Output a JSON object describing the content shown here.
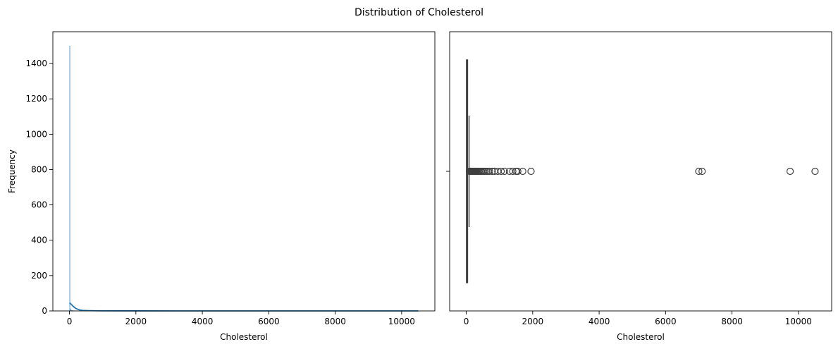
{
  "figure": {
    "title": "Distribution of Cholesterol"
  },
  "chart_data": [
    {
      "type": "histogram",
      "xlabel": "Cholesterol",
      "ylabel": "Frequency",
      "xlim": [
        -500,
        11000
      ],
      "ylim": [
        0,
        1580
      ],
      "xticks": [
        0,
        2000,
        4000,
        6000,
        8000,
        10000
      ],
      "yticks": [
        0,
        200,
        400,
        600,
        800,
        1000,
        1200,
        1400
      ],
      "grid": false,
      "bin_width": 21,
      "bins": [
        {
          "x": 0,
          "count": 1500
        },
        {
          "x": 21,
          "count": 12
        },
        {
          "x": 42,
          "count": 5
        },
        {
          "x": 63,
          "count": 3
        },
        {
          "x": 84,
          "count": 2
        },
        {
          "x": 105,
          "count": 2
        },
        {
          "x": 126,
          "count": 1
        },
        {
          "x": 147,
          "count": 1
        },
        {
          "x": 168,
          "count": 1
        }
      ],
      "kde": {
        "x": [
          0,
          30,
          60,
          100,
          150,
          200,
          300,
          400,
          600,
          1000,
          2000,
          4000,
          6000,
          8000,
          10500
        ],
        "y": [
          45,
          42,
          36,
          28,
          20,
          13,
          6,
          3,
          1.5,
          0.5,
          0.2,
          0.1,
          0.1,
          0.1,
          0.1
        ]
      },
      "color": "#1f77b4"
    },
    {
      "type": "boxplot",
      "orientation": "horizontal",
      "xlabel": "Cholesterol",
      "xlim": [
        -500,
        11000
      ],
      "xticks": [
        0,
        2000,
        4000,
        6000,
        8000,
        10000
      ],
      "grid": false,
      "box": {
        "q1": 5,
        "median": 15,
        "q3": 40,
        "whisker_low": 0,
        "whisker_high": 85
      },
      "outliers": [
        95,
        110,
        125,
        140,
        160,
        180,
        200,
        220,
        240,
        260,
        280,
        300,
        330,
        360,
        390,
        420,
        460,
        500,
        550,
        600,
        650,
        700,
        780,
        850,
        950,
        1050,
        1150,
        1300,
        1400,
        1500,
        1550,
        1700,
        1950,
        7000,
        7100,
        9750,
        10500
      ],
      "color": "#3f3f3f"
    }
  ]
}
